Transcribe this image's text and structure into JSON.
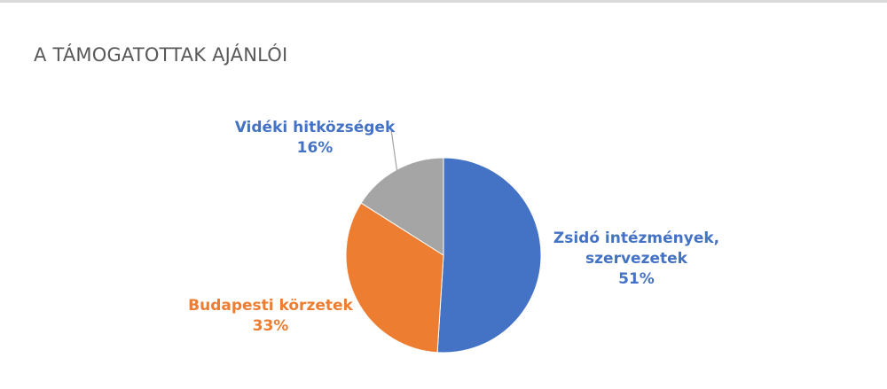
{
  "title": "A TÁMOGATOTTAK AJÁNLÓI",
  "chart_data": {
    "type": "pie",
    "title": "A TÁMOGATOTTAK AJÁNLÓI",
    "categories": [
      "Zsidó intézmények, szervezetek",
      "Budapesti körzetek",
      "Vidéki hitközségek"
    ],
    "values": [
      51,
      33,
      16
    ],
    "unit": "%",
    "colors": [
      "#4472c4",
      "#ed7d31",
      "#a5a5a5"
    ],
    "start_angle_deg": 0,
    "direction": "clockwise",
    "legend": "none (data labels with category name and percentage)"
  },
  "labels": {
    "zsido": {
      "line1": "Zsidó intézmények,",
      "line2": "szervezetek",
      "pct": "51%"
    },
    "budapesti": {
      "line1": "Budapesti körzetek",
      "pct": "33%"
    },
    "videki": {
      "line1": "Vidéki hitközségek",
      "pct": "16%"
    }
  }
}
